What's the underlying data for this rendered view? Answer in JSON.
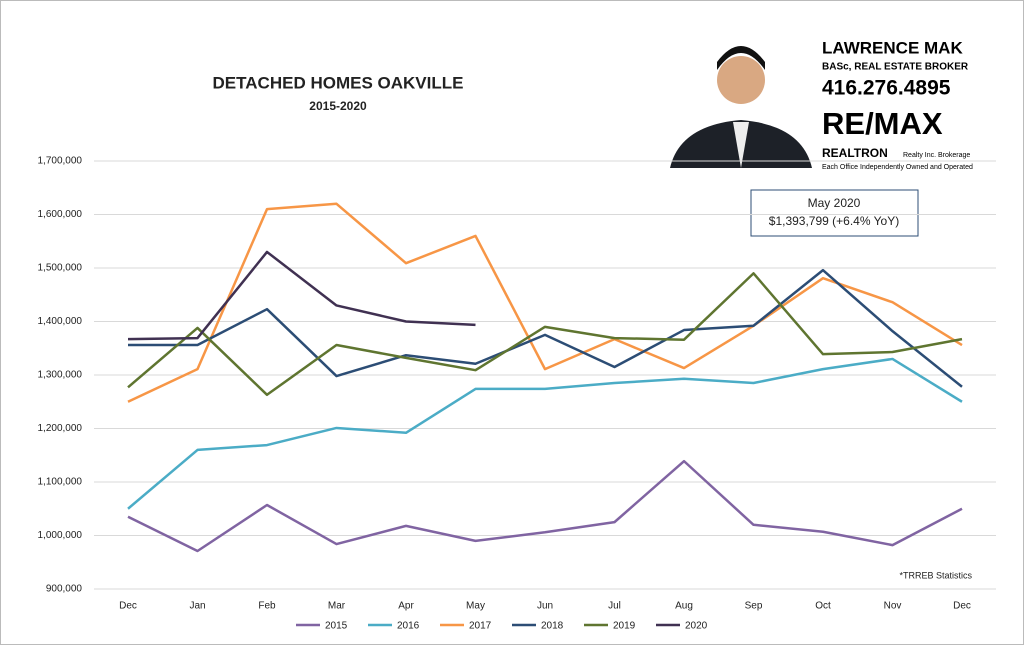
{
  "chart_data": {
    "type": "line",
    "title": "DETACHED HOMES OAKVILLE",
    "subtitle": "2015-2020",
    "categories": [
      "Dec",
      "Jan",
      "Feb",
      "Mar",
      "Apr",
      "May",
      "Jun",
      "Jul",
      "Aug",
      "Sep",
      "Oct",
      "Nov",
      "Dec"
    ],
    "series": [
      {
        "name": "2015",
        "color": "#8064a2",
        "values": [
          1035000,
          971000,
          1057000,
          984000,
          1018000,
          990000,
          1006000,
          1025000,
          1139000,
          1020000,
          1007000,
          982000,
          1050000
        ]
      },
      {
        "name": "2016",
        "color": "#4bacc6",
        "values": [
          1050000,
          1160000,
          1169000,
          1201000,
          1192000,
          1274000,
          1274000,
          1285000,
          1293000,
          1285000,
          1311000,
          1330000,
          1250000
        ]
      },
      {
        "name": "2017",
        "color": "#f79646",
        "values": [
          1250000,
          1311000,
          1610000,
          1620000,
          1509000,
          1560000,
          1311000,
          1367000,
          1313000,
          1392000,
          1481000,
          1436000,
          1356000
        ]
      },
      {
        "name": "2018",
        "color": "#2c4d75",
        "values": [
          1356000,
          1356000,
          1423000,
          1298000,
          1337000,
          1321000,
          1375000,
          1315000,
          1384000,
          1392000,
          1496000,
          1382000,
          1278000
        ]
      },
      {
        "name": "2019",
        "color": "#5f7530",
        "values": [
          1277000,
          1388000,
          1263000,
          1356000,
          1332000,
          1309000,
          1390000,
          1369000,
          1366000,
          1490000,
          1339000,
          1343000,
          1367000
        ]
      },
      {
        "name": "2020",
        "color": "#403152",
        "values": [
          1367000,
          1369000,
          1530000,
          1430000,
          1400000,
          1393799,
          null,
          null,
          null,
          null,
          null,
          null,
          null
        ]
      }
    ],
    "ylim": [
      900000,
      1700000
    ],
    "yticks": [
      {
        "value": 900000,
        "label": "900,000"
      },
      {
        "value": 1000000,
        "label": "1,000,000"
      },
      {
        "value": 1100000,
        "label": "1,100,000"
      },
      {
        "value": 1200000,
        "label": "1,200,000"
      },
      {
        "value": 1300000,
        "label": "1,300,000"
      },
      {
        "value": 1400000,
        "label": "1,400,000"
      },
      {
        "value": 1500000,
        "label": "1,500,000"
      },
      {
        "value": 1600000,
        "label": "1,600,000"
      },
      {
        "value": 1700000,
        "label": "1,700,000"
      }
    ],
    "grid": true,
    "legend": "bottom",
    "annotation": {
      "title": "May 2020",
      "text": "$1,393,799  (+6.4% YoY)"
    },
    "footnote": "*TRREB Statistics",
    "agent": {
      "name": "LAWRENCE MAK",
      "credentials": "BASc, REAL ESTATE BROKER",
      "phone": "416.276.4895",
      "brand": "RE/MAX",
      "office": "REALTRON",
      "office_suffix": "Realty Inc. Brokerage",
      "disclaimer": "Each Office Independently Owned and Operated"
    }
  }
}
